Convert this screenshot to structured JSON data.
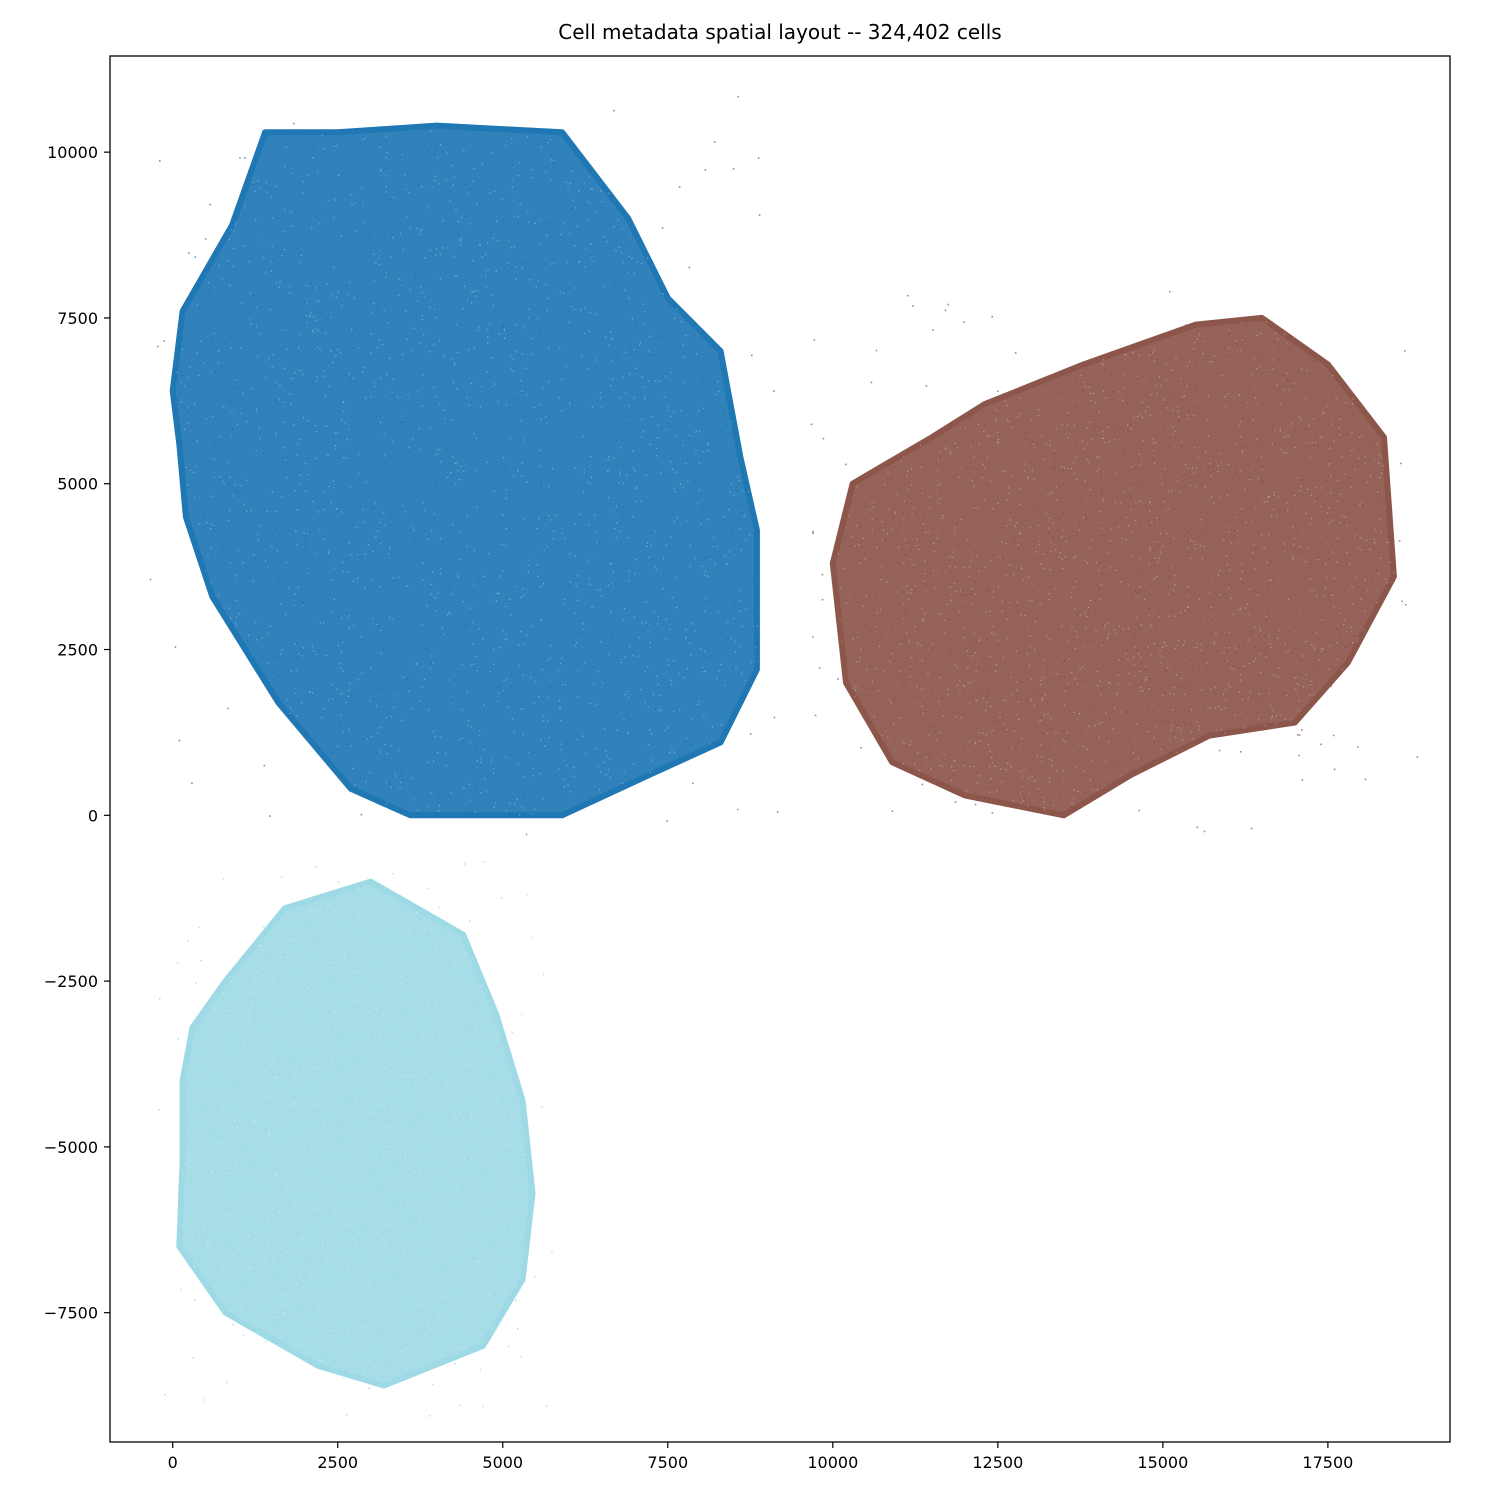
{
  "chart_data": {
    "type": "scatter",
    "title": "Cell metadata spatial layout -- 324,402 cells",
    "xlabel": "",
    "ylabel": "",
    "xlim": [
      -950,
      19350
    ],
    "ylim": [
      -9450,
      11450
    ],
    "grid": false,
    "legend": "none",
    "x_ticks": [
      0,
      2500,
      5000,
      7500,
      10000,
      12500,
      15000,
      17500
    ],
    "x_tick_labels": [
      "0",
      "2500",
      "5000",
      "7500",
      "10000",
      "12500",
      "15000",
      "17500"
    ],
    "y_ticks": [
      10000,
      7500,
      5000,
      2500,
      0,
      -2500,
      -5000,
      -7500
    ],
    "y_tick_labels": [
      "10000",
      "7500",
      "5000",
      "2500",
      "0",
      "−2500",
      "−5000",
      "−7500"
    ],
    "series": [
      {
        "color": "#1f77b4",
        "x_range": [
          0,
          8900
        ],
        "y_range": [
          0,
          10500
        ],
        "outline": [
          [
            0,
            6400
          ],
          [
            150,
            7600
          ],
          [
            900,
            8900
          ],
          [
            1400,
            10300
          ],
          [
            2500,
            10300
          ],
          [
            4000,
            10400
          ],
          [
            5900,
            10300
          ],
          [
            6900,
            9000
          ],
          [
            7500,
            7800
          ],
          [
            8300,
            7000
          ],
          [
            8600,
            5400
          ],
          [
            8850,
            4300
          ],
          [
            8850,
            2200
          ],
          [
            8300,
            1100
          ],
          [
            7200,
            600
          ],
          [
            5900,
            0
          ],
          [
            3600,
            0
          ],
          [
            2700,
            400
          ],
          [
            1600,
            1700
          ],
          [
            600,
            3300
          ],
          [
            200,
            4500
          ],
          [
            100,
            5600
          ]
        ]
      },
      {
        "color": "#8c564b",
        "x_range": [
          10000,
          18500
        ],
        "y_range": [
          0,
          7600
        ],
        "outline": [
          [
            10000,
            3800
          ],
          [
            10300,
            5000
          ],
          [
            11500,
            5700
          ],
          [
            12300,
            6200
          ],
          [
            13800,
            6800
          ],
          [
            15500,
            7400
          ],
          [
            16500,
            7500
          ],
          [
            17500,
            6800
          ],
          [
            18350,
            5700
          ],
          [
            18500,
            3600
          ],
          [
            17800,
            2300
          ],
          [
            17000,
            1400
          ],
          [
            15700,
            1200
          ],
          [
            14500,
            600
          ],
          [
            13500,
            0
          ],
          [
            12000,
            300
          ],
          [
            10900,
            800
          ],
          [
            10200,
            2000
          ]
        ]
      },
      {
        "color": "#9edae5",
        "x_range": [
          100,
          5500
        ],
        "y_range": [
          -8700,
          -1000
        ],
        "outline": [
          [
            300,
            -3200
          ],
          [
            800,
            -2500
          ],
          [
            1700,
            -1400
          ],
          [
            3000,
            -1000
          ],
          [
            4400,
            -1800
          ],
          [
            4900,
            -3000
          ],
          [
            5300,
            -4300
          ],
          [
            5450,
            -5700
          ],
          [
            5300,
            -7000
          ],
          [
            4700,
            -8000
          ],
          [
            3200,
            -8600
          ],
          [
            2200,
            -8300
          ],
          [
            800,
            -7500
          ],
          [
            100,
            -6500
          ],
          [
            150,
            -5200
          ],
          [
            150,
            -4000
          ]
        ]
      }
    ]
  }
}
